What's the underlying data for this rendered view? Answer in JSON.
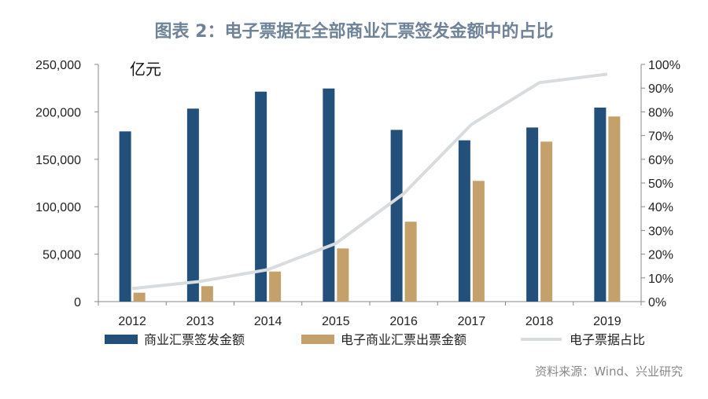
{
  "chart_data": {
    "type": "bar",
    "title": "图表 2：电子票据在全部商业汇票签发金额中的占比",
    "unit_label": "亿元",
    "source": "资料来源：Wind、兴业研究",
    "categories": [
      "2012",
      "2013",
      "2014",
      "2015",
      "2016",
      "2017",
      "2018",
      "2019"
    ],
    "series": [
      {
        "name": "商业汇票签发金额",
        "type": "bar",
        "axis": "left",
        "color": "#23507a",
        "values": [
          179400,
          203400,
          221300,
          224600,
          181000,
          170000,
          183500,
          204500
        ]
      },
      {
        "name": "电子商业汇票出票金额",
        "type": "bar",
        "axis": "left",
        "color": "#c4a06a",
        "values": [
          9400,
          16300,
          31700,
          56000,
          84200,
          127200,
          168600,
          195100
        ]
      },
      {
        "name": "电子票据占比",
        "type": "line",
        "axis": "right",
        "color": "#d9dcdf",
        "values": [
          5.5,
          8.5,
          13.5,
          24.5,
          45.5,
          74.7,
          92.3,
          95.9
        ]
      }
    ],
    "ylim": [
      0,
      250000
    ],
    "yticks": [
      "0",
      "50,000",
      "100,000",
      "150,000",
      "200,000",
      "250,000"
    ],
    "y2lim": [
      0,
      100
    ],
    "y2ticks": [
      "0%",
      "10%",
      "20%",
      "30%",
      "40%",
      "50%",
      "60%",
      "70%",
      "80%",
      "90%",
      "100%"
    ],
    "legend_position": "bottom",
    "grid": false
  }
}
